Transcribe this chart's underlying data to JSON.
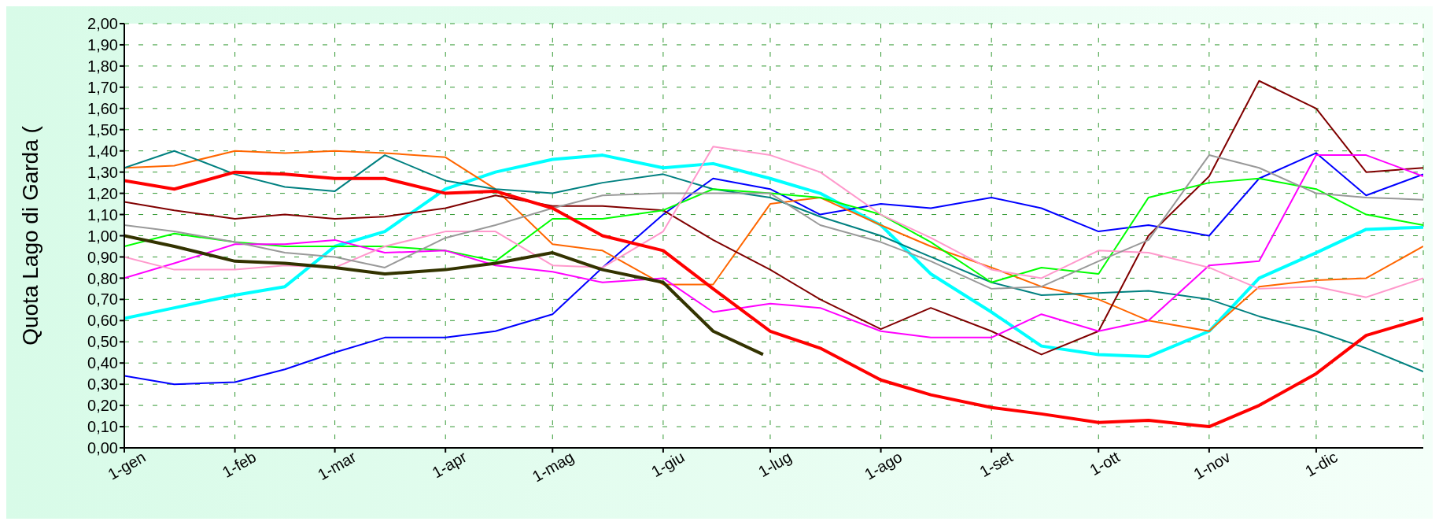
{
  "chart_data": {
    "type": "line",
    "ylabel": "Quota Lago di Garda (",
    "xlim": [
      "--01-01",
      "--12-31"
    ],
    "xticks": [
      {
        "value": "--01-01",
        "label": "1-gen"
      },
      {
        "value": "--02-01",
        "label": "1-feb"
      },
      {
        "value": "--03-01",
        "label": "1-mar"
      },
      {
        "value": "--04-01",
        "label": "1-apr"
      },
      {
        "value": "--05-01",
        "label": "1-mag"
      },
      {
        "value": "--06-01",
        "label": "1-giu"
      },
      {
        "value": "--07-01",
        "label": "1-lug"
      },
      {
        "value": "--08-01",
        "label": "1-ago"
      },
      {
        "value": "--09-01",
        "label": "1-set"
      },
      {
        "value": "--10-01",
        "label": "1-ott"
      },
      {
        "value": "--11-01",
        "label": "1-nov"
      },
      {
        "value": "--12-01",
        "label": "1-dic"
      }
    ],
    "ylim": [
      0,
      2
    ],
    "yticks": [
      {
        "value": 0,
        "label": "0,00"
      },
      {
        "value": 0.1,
        "label": "0,10"
      },
      {
        "value": 0.2,
        "label": "0,20"
      },
      {
        "value": 0.3,
        "label": "0,30"
      },
      {
        "value": 0.4,
        "label": "0,40"
      },
      {
        "value": 0.5,
        "label": "0,50"
      },
      {
        "value": 0.6,
        "label": "0,60"
      },
      {
        "value": 0.7,
        "label": "0,70"
      },
      {
        "value": 0.8,
        "label": "0,80"
      },
      {
        "value": 0.9,
        "label": "0,90"
      },
      {
        "value": 1,
        "label": "1,00"
      },
      {
        "value": 1.1,
        "label": "1,10"
      },
      {
        "value": 1.2,
        "label": "1,20"
      },
      {
        "value": 1.3,
        "label": "1,30"
      },
      {
        "value": 1.4,
        "label": "1,40"
      },
      {
        "value": 1.5,
        "label": "1,50"
      },
      {
        "value": 1.6,
        "label": "1,60"
      },
      {
        "value": 1.7,
        "label": "1,70"
      },
      {
        "value": 1.8,
        "label": "1,80"
      },
      {
        "value": 1.9,
        "label": "1,90"
      },
      {
        "value": 2,
        "label": "2,00"
      }
    ],
    "grid": true,
    "legend": false,
    "marker": "none",
    "line_style": "solid",
    "x": [
      "--01-01",
      "--01-15",
      "--02-01",
      "--02-15",
      "--03-01",
      "--03-15",
      "--04-01",
      "--04-15",
      "--05-01",
      "--05-15",
      "--06-01",
      "--06-15",
      "--07-01",
      "--07-15",
      "--08-01",
      "--08-15",
      "--09-01",
      "--09-15",
      "--10-01",
      "--10-15",
      "--11-01",
      "--11-15",
      "--12-01",
      "--12-15",
      "--12-31"
    ],
    "series": [
      {
        "color": "#00ffff",
        "values": [
          0.61,
          0.66,
          0.72,
          0.76,
          0.95,
          1.02,
          1.22,
          1.3,
          1.36,
          1.38,
          1.32,
          1.34,
          1.27,
          1.2,
          1.05,
          0.82,
          0.64,
          0.48,
          0.44,
          0.43,
          0.55,
          0.8,
          0.92,
          1.03,
          1.04
        ]
      },
      {
        "color": "#0000ff",
        "values": [
          0.34,
          0.3,
          0.31,
          0.37,
          0.45,
          0.52,
          0.52,
          0.55,
          0.63,
          0.85,
          1.1,
          1.27,
          1.22,
          1.1,
          1.15,
          1.13,
          1.18,
          1.13,
          1.02,
          1.05,
          1,
          1.27,
          1.39,
          1.19,
          1.29
        ]
      },
      {
        "color": "#ff6600",
        "values": [
          1.32,
          1.33,
          1.4,
          1.39,
          1.4,
          1.39,
          1.37,
          1.22,
          0.96,
          0.93,
          0.77,
          0.77,
          1.15,
          1.18,
          1.05,
          0.95,
          0.85,
          0.76,
          0.7,
          0.6,
          0.55,
          0.76,
          0.79,
          0.8,
          0.95
        ]
      },
      {
        "color": "#008080",
        "values": [
          1.32,
          1.4,
          1.29,
          1.23,
          1.21,
          1.38,
          1.26,
          1.22,
          1.2,
          1.25,
          1.29,
          1.22,
          1.18,
          1.09,
          1,
          0.9,
          0.78,
          0.72,
          0.73,
          0.74,
          0.7,
          0.62,
          0.55,
          0.47,
          0.36
        ]
      },
      {
        "color": "#800000",
        "values": [
          1.16,
          1.12,
          1.08,
          1.1,
          1.08,
          1.09,
          1.13,
          1.19,
          1.14,
          1.14,
          1.12,
          0.98,
          0.84,
          0.7,
          0.56,
          0.66,
          0.55,
          0.44,
          0.55,
          1,
          1.28,
          1.73,
          1.6,
          1.3,
          1.32
        ]
      },
      {
        "color": "#00ff00",
        "values": [
          0.95,
          1.01,
          0.97,
          0.95,
          0.95,
          0.95,
          0.93,
          0.88,
          1.08,
          1.08,
          1.12,
          1.22,
          1.2,
          1.18,
          1.1,
          0.97,
          0.78,
          0.85,
          0.82,
          1.18,
          1.25,
          1.27,
          1.22,
          1.1,
          1.05
        ]
      },
      {
        "color": "#ff00ff",
        "values": [
          0.8,
          0.87,
          0.96,
          0.96,
          0.98,
          0.92,
          0.93,
          0.86,
          0.83,
          0.78,
          0.8,
          0.64,
          0.68,
          0.66,
          0.55,
          0.52,
          0.52,
          0.63,
          0.55,
          0.6,
          0.86,
          0.88,
          1.38,
          1.38,
          1.28
        ]
      },
      {
        "color": "#ff99cc",
        "values": [
          0.9,
          0.84,
          0.84,
          0.86,
          0.85,
          0.95,
          1.02,
          1.02,
          0.86,
          0.85,
          1.02,
          1.42,
          1.38,
          1.3,
          1.1,
          0.99,
          0.84,
          0.8,
          0.93,
          0.92,
          0.85,
          0.75,
          0.76,
          0.71,
          0.8
        ]
      },
      {
        "color": "#999999",
        "values": [
          1.05,
          1.02,
          0.97,
          0.92,
          0.9,
          0.85,
          0.99,
          1.05,
          1.13,
          1.19,
          1.2,
          1.2,
          1.2,
          1.05,
          0.97,
          0.88,
          0.75,
          0.76,
          0.88,
          0.98,
          1.38,
          1.32,
          1.2,
          1.18,
          1.17
        ]
      },
      {
        "color": "#333300",
        "x": [
          "--01-01",
          "--01-15",
          "--02-01",
          "--02-15",
          "--03-01",
          "--03-15",
          "--04-01",
          "--04-15",
          "--05-01",
          "--05-15",
          "--06-01",
          "--06-15",
          "--06-29"
        ],
        "values": [
          1,
          0.95,
          0.88,
          0.87,
          0.85,
          0.82,
          0.84,
          0.87,
          0.92,
          0.84,
          0.78,
          0.55,
          0.44
        ]
      },
      {
        "color": "#ff0000",
        "values": [
          1.26,
          1.22,
          1.3,
          1.29,
          1.27,
          1.27,
          1.2,
          1.21,
          1.13,
          1,
          0.93,
          0.75,
          0.55,
          0.47,
          0.32,
          0.25,
          0.19,
          0.16,
          0.12,
          0.13,
          0.1,
          0.2,
          0.35,
          0.53,
          0.61
        ]
      }
    ]
  }
}
